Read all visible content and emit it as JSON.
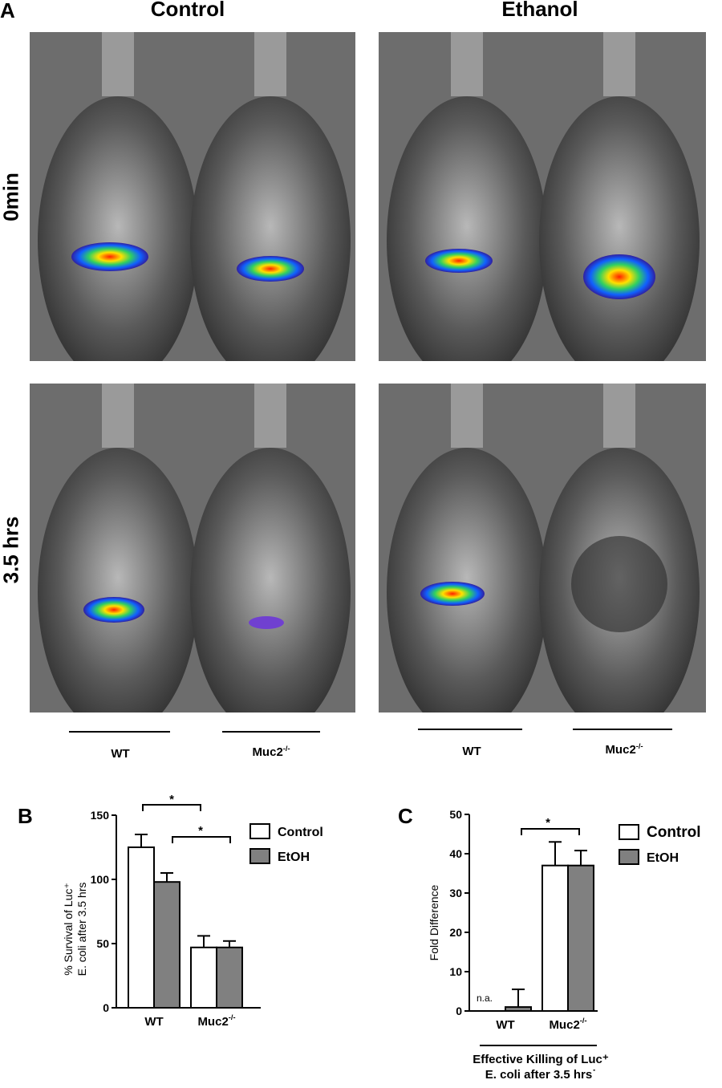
{
  "panel_a": {
    "letter": "A",
    "columns": [
      "Control",
      "Ethanol"
    ],
    "rows": [
      "0min",
      "3.5 hrs"
    ],
    "genotypes": [
      {
        "base": "WT",
        "sup": ""
      },
      {
        "base": "Muc2",
        "sup": "-/-"
      },
      {
        "base": "WT",
        "sup": ""
      },
      {
        "base": "Muc2",
        "sup": "-/-"
      }
    ]
  },
  "chart_data": [
    {
      "type": "bar",
      "letter": "B",
      "ylabel_lines": [
        "% Survival of Luc⁺",
        "E. coli after 3.5 hrs"
      ],
      "ylim": [
        0,
        150
      ],
      "yticks": [
        "0",
        "50",
        "100",
        "150"
      ],
      "categories": [
        {
          "base": "WT",
          "sup": ""
        },
        {
          "base": "Muc2",
          "sup": "-/-"
        }
      ],
      "series": [
        {
          "name": "Control",
          "color": "#ffffff",
          "values": [
            125,
            47
          ],
          "errors": [
            10,
            9
          ]
        },
        {
          "name": "EtOH",
          "color": "#808080",
          "values": [
            98,
            47
          ],
          "errors": [
            7,
            5
          ]
        }
      ],
      "significance": [
        "*",
        "*"
      ],
      "legend_position": "top-right"
    },
    {
      "type": "bar",
      "letter": "C",
      "ylabel": "Fold Difference",
      "ylim": [
        0,
        50
      ],
      "yticks": [
        "0",
        "10",
        "20",
        "30",
        "40",
        "50"
      ],
      "categories": [
        {
          "base": "WT",
          "sup": ""
        },
        {
          "base": "Muc2",
          "sup": "-/-"
        }
      ],
      "series": [
        {
          "name": "Control",
          "color": "#ffffff",
          "values": [
            null,
            37
          ],
          "errors": [
            null,
            6
          ]
        },
        {
          "name": "EtOH",
          "color": "#808080",
          "values": [
            1,
            37
          ],
          "errors": [
            4.5,
            3.8
          ]
        }
      ],
      "na_label": "n.a.",
      "significance": [
        "*"
      ],
      "xlabel_lines": [
        "Effective Killing of Luc⁺",
        "E. coli after 3.5 hrs˙"
      ],
      "legend_position": "top-right"
    }
  ]
}
